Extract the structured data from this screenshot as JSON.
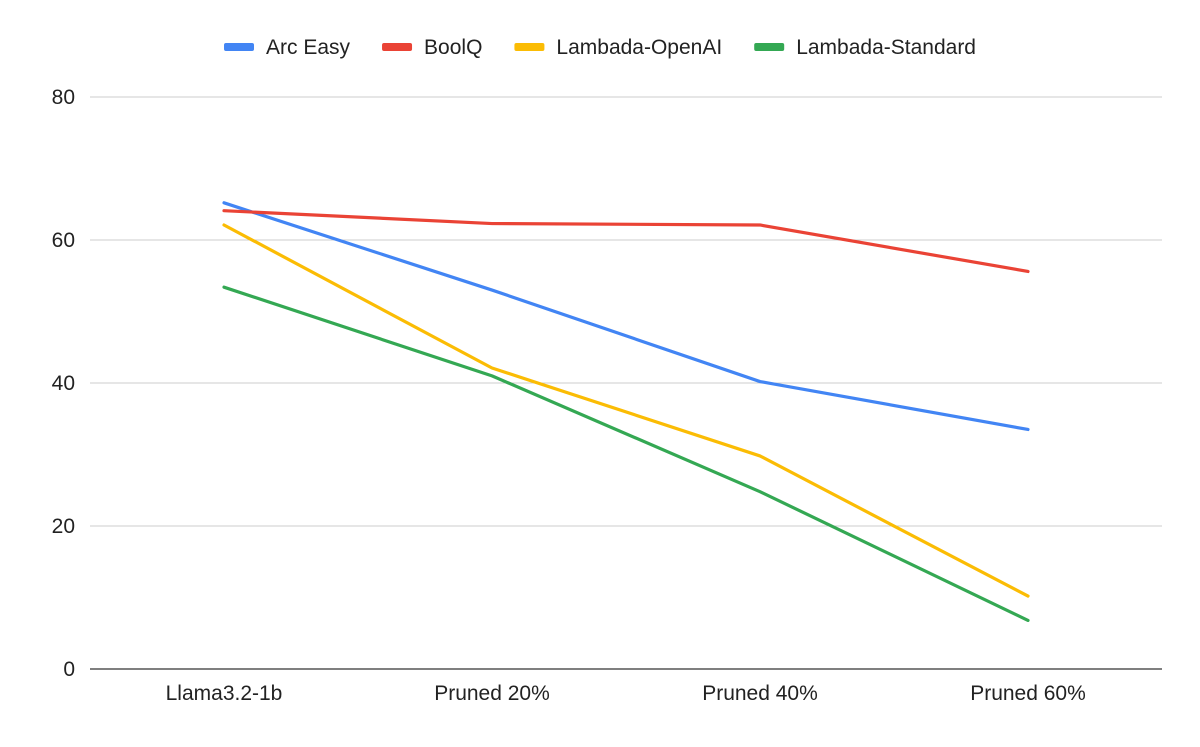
{
  "chart_data": {
    "type": "line",
    "categories": [
      "Llama3.2-1b",
      "Pruned 20%",
      "Pruned 40%",
      "Pruned 60%"
    ],
    "series": [
      {
        "name": "Arc Easy",
        "color": "#4285F4",
        "values": [
          65.2,
          53.0,
          40.2,
          33.5
        ]
      },
      {
        "name": "BoolQ",
        "color": "#EA4335",
        "values": [
          64.1,
          62.3,
          62.1,
          55.6
        ]
      },
      {
        "name": "Lambada-OpenAI",
        "color": "#FBBC04",
        "values": [
          62.1,
          42.1,
          29.8,
          10.2
        ]
      },
      {
        "name": "Lambada-Standard",
        "color": "#34A853",
        "values": [
          53.4,
          41.0,
          24.8,
          6.8
        ]
      }
    ],
    "y_ticks": [
      "0",
      "20",
      "40",
      "60",
      "80"
    ],
    "ylim": [
      0,
      80
    ],
    "grid": true,
    "legend_position": "top",
    "title": "",
    "xlabel": "",
    "ylabel": ""
  }
}
